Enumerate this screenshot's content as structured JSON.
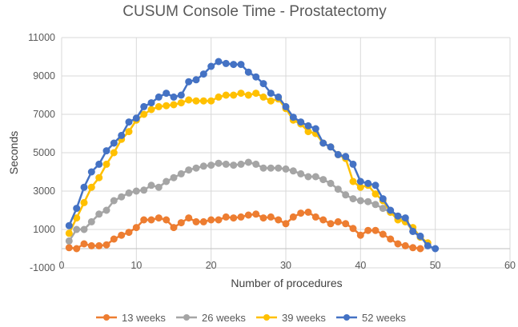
{
  "chart_data": {
    "type": "line",
    "title": "CUSUM Console Time - Prostatectomy",
    "xlabel": "Number of procedures",
    "ylabel": "Seconds",
    "xlim": [
      0,
      60
    ],
    "ylim": [
      -1000,
      11000
    ],
    "xticks": [
      0,
      10,
      20,
      30,
      40,
      50,
      60
    ],
    "yticks": [
      -1000,
      1000,
      3000,
      5000,
      7000,
      9000,
      11000
    ],
    "grid": true,
    "legend_position": "bottom",
    "series": [
      {
        "name": "13 weeks",
        "color": "#ED7D31",
        "x": [
          1,
          2,
          3,
          4,
          5,
          6,
          7,
          8,
          9,
          10,
          11,
          12,
          13,
          14,
          15,
          16,
          17,
          18,
          19,
          20,
          21,
          22,
          23,
          24,
          25,
          26,
          27,
          28,
          29,
          30,
          31,
          32,
          33,
          34,
          35,
          36,
          37,
          38,
          39,
          40,
          41,
          42,
          43,
          44,
          45,
          46,
          47,
          48
        ],
        "values": [
          50,
          0,
          250,
          150,
          150,
          200,
          500,
          700,
          850,
          1100,
          1500,
          1500,
          1600,
          1500,
          1100,
          1350,
          1600,
          1400,
          1400,
          1500,
          1500,
          1650,
          1600,
          1650,
          1750,
          1800,
          1600,
          1650,
          1500,
          1300,
          1650,
          1850,
          1900,
          1650,
          1500,
          1300,
          1400,
          1300,
          1050,
          700,
          950,
          950,
          750,
          500,
          250,
          150,
          50,
          0
        ]
      },
      {
        "name": "26 weeks",
        "color": "#A5A5A5",
        "x": [
          1,
          2,
          3,
          4,
          5,
          6,
          7,
          8,
          9,
          10,
          11,
          12,
          13,
          14,
          15,
          16,
          17,
          18,
          19,
          20,
          21,
          22,
          23,
          24,
          25,
          26,
          27,
          28,
          29,
          30,
          31,
          32,
          33,
          34,
          35,
          36,
          37,
          38,
          39,
          40,
          41,
          42,
          43,
          44,
          45,
          46,
          47,
          48
        ],
        "values": [
          400,
          1000,
          1000,
          1400,
          1800,
          2000,
          2500,
          2700,
          2900,
          3000,
          3050,
          3300,
          3200,
          3500,
          3700,
          3900,
          4100,
          4200,
          4300,
          4350,
          4450,
          4400,
          4350,
          4400,
          4500,
          4400,
          4200,
          4200,
          4200,
          4150,
          4050,
          3900,
          3750,
          3750,
          3600,
          3400,
          3100,
          2800,
          2600,
          2500,
          2450,
          2300,
          2100,
          1900,
          1600,
          1450,
          900,
          600
        ]
      },
      {
        "name": "39 weeks",
        "color": "#FFC000",
        "x": [
          1,
          2,
          3,
          4,
          5,
          6,
          7,
          8,
          9,
          10,
          11,
          12,
          13,
          14,
          15,
          16,
          17,
          18,
          19,
          20,
          21,
          22,
          23,
          24,
          25,
          26,
          27,
          28,
          29,
          30,
          31,
          32,
          33,
          34,
          35,
          36,
          37,
          38,
          39,
          40,
          41,
          42,
          43,
          44,
          45,
          46,
          47,
          48,
          49
        ],
        "values": [
          800,
          1600,
          2400,
          3200,
          3700,
          4400,
          5000,
          5700,
          6100,
          6700,
          7000,
          7250,
          7400,
          7450,
          7500,
          7600,
          7750,
          7700,
          7700,
          7700,
          7900,
          8000,
          8000,
          8100,
          8000,
          8100,
          7900,
          7700,
          7800,
          7300,
          6700,
          6500,
          6100,
          6000,
          5500,
          5300,
          4900,
          4700,
          3500,
          3200,
          3300,
          2850,
          2500,
          1900,
          1500,
          1400,
          1100,
          600,
          300
        ]
      },
      {
        "name": "52 weeks",
        "color": "#4472C4",
        "x": [
          1,
          2,
          3,
          4,
          5,
          6,
          7,
          8,
          9,
          10,
          11,
          12,
          13,
          14,
          15,
          16,
          17,
          18,
          19,
          20,
          21,
          22,
          23,
          24,
          25,
          26,
          27,
          28,
          29,
          30,
          31,
          32,
          33,
          34,
          35,
          36,
          37,
          38,
          39,
          40,
          41,
          42,
          43,
          44,
          45,
          46,
          47,
          48,
          49,
          50
        ],
        "values": [
          1200,
          2100,
          3200,
          4000,
          4400,
          5100,
          5500,
          5900,
          6600,
          6800,
          7400,
          7600,
          7900,
          8100,
          7900,
          8000,
          8700,
          8800,
          9100,
          9500,
          9750,
          9650,
          9600,
          9600,
          9200,
          8950,
          8600,
          8100,
          7900,
          7400,
          6850,
          6600,
          6400,
          6250,
          5500,
          5300,
          4900,
          4800,
          4400,
          3500,
          3400,
          3300,
          2600,
          2000,
          1700,
          1600,
          900,
          650,
          150,
          0
        ]
      }
    ]
  }
}
